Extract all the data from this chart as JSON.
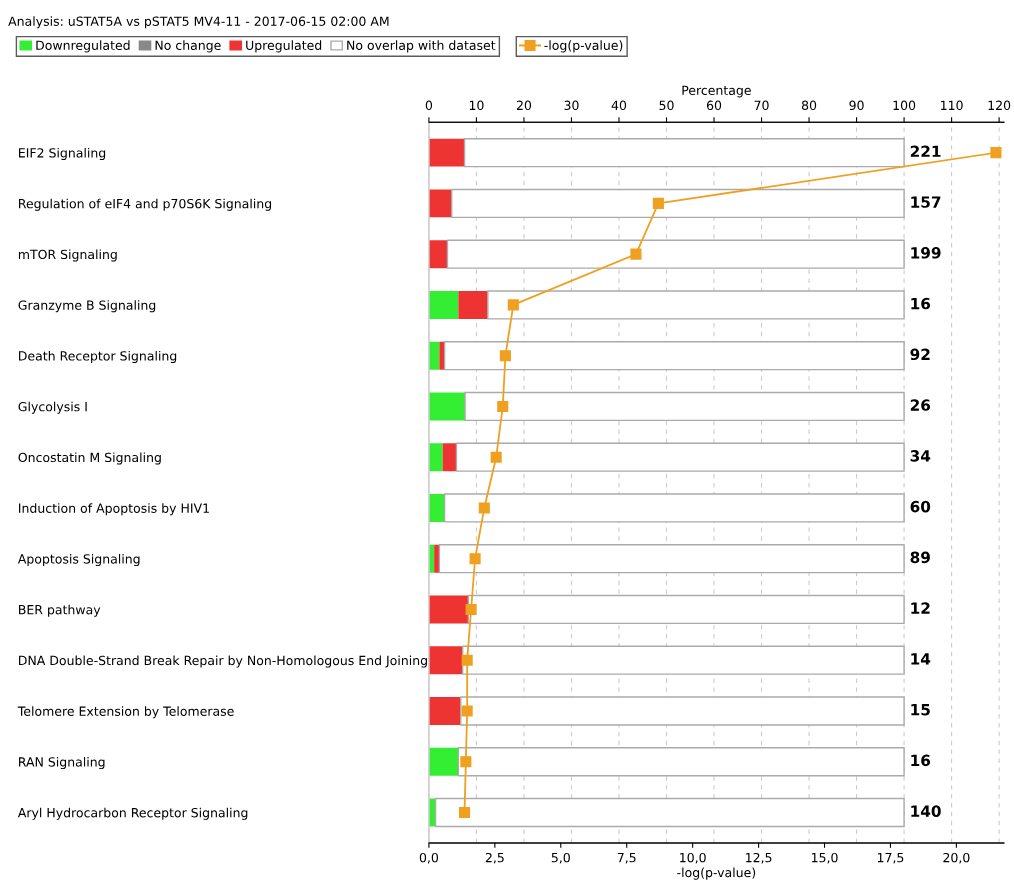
{
  "chart_data": {
    "type": "bar",
    "orientation": "horizontal",
    "stacked": true,
    "title": "Analysis: uSTAT5A vs pSTAT5 MV4-11 - 2017-06-15 02:00 AM",
    "categories": [
      "EIF2 Signaling",
      "Regulation of eIF4 and p70S6K Signaling",
      "mTOR Signaling",
      "Granzyme B Signaling",
      "Death Receptor Signaling",
      "Glycolysis I",
      "Oncostatin M Signaling",
      "Induction of Apoptosis by HIV1",
      "Apoptosis Signaling",
      "BER pathway",
      "DNA Double-Strand Break Repair by Non-Homologous End Joining",
      "Telomere Extension by Telomerase",
      "RAN Signaling",
      "Aryl Hydrocarbon Receptor Signaling"
    ],
    "series": [
      {
        "name": "Downregulated",
        "color": "#33ee33",
        "values": [
          0,
          0,
          0,
          6.2,
          2.2,
          7.6,
          2.9,
          3.3,
          1.1,
          0,
          0,
          0,
          6.2,
          1.4
        ]
      },
      {
        "name": "No change",
        "color": "#888888",
        "values": [
          0,
          0,
          0,
          0,
          0,
          0,
          0,
          0,
          0,
          0,
          0,
          0,
          0,
          0
        ]
      },
      {
        "name": "Upregulated",
        "color": "#ee3333",
        "values": [
          7.5,
          4.8,
          3.9,
          6.2,
          1.1,
          0,
          2.9,
          0,
          1.1,
          8.3,
          7.1,
          6.7,
          0,
          0
        ]
      },
      {
        "name": "No overlap with dataset",
        "color": "#ffffff",
        "values": [
          92.5,
          95.2,
          96.1,
          87.6,
          96.7,
          92.4,
          94.2,
          96.7,
          97.8,
          91.7,
          92.9,
          93.3,
          93.8,
          98.6
        ]
      },
      {
        "name": "-log(p-value)",
        "type": "line",
        "color": "#f0a020",
        "axis": "x2",
        "marker": "square",
        "values": [
          21.5,
          8.7,
          7.85,
          3.2,
          2.9,
          2.8,
          2.55,
          2.1,
          1.75,
          1.6,
          1.45,
          1.45,
          1.4,
          1.35
        ]
      }
    ],
    "annotations": [
      "221",
      "157",
      "199",
      "16",
      "92",
      "26",
      "34",
      "60",
      "89",
      "12",
      "14",
      "15",
      "16",
      "140"
    ],
    "x2label": "-log(p-value)",
    "x2lim": [
      0,
      21.8
    ],
    "x2ticks": [
      {
        "value": 0,
        "label": "0,0"
      },
      {
        "value": 2.5,
        "label": "2,5"
      },
      {
        "value": 5,
        "label": "5,0"
      },
      {
        "value": 7.5,
        "label": "7,5"
      },
      {
        "value": 10,
        "label": "10,0"
      },
      {
        "value": 12.5,
        "label": "12,5"
      },
      {
        "value": 15,
        "label": "15,0"
      },
      {
        "value": 17.5,
        "label": "17,5"
      },
      {
        "value": 20,
        "label": "20,0"
      }
    ],
    "xlabel": "Percentage",
    "xlim": [
      0,
      121
    ],
    "xticks": [
      0,
      10,
      20,
      30,
      40,
      50,
      60,
      70,
      80,
      90,
      100,
      110,
      120
    ],
    "grid": "x",
    "legend": "top left"
  }
}
